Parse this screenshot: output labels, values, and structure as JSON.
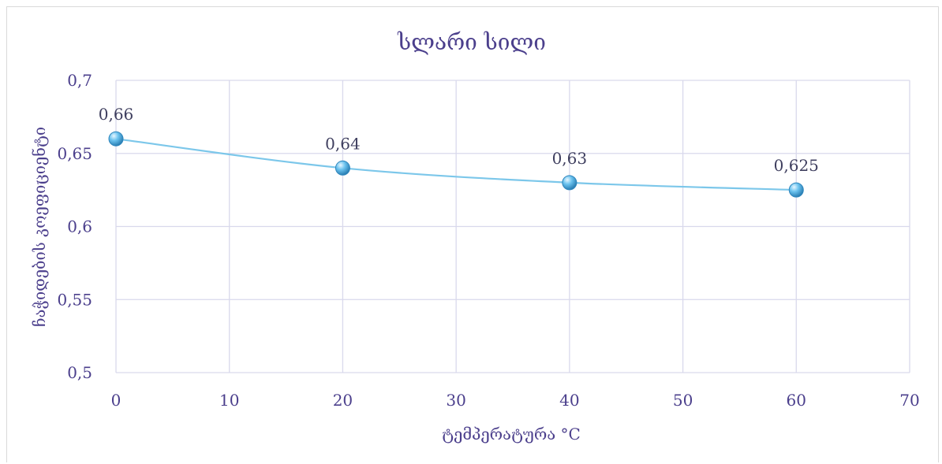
{
  "chart_data": {
    "type": "scatter",
    "title": "სლარი სილი",
    "xlabel": "ტემპერატურა °C",
    "ylabel": "ჩაჭიდების კოეფიციენტი",
    "x_ticks": [
      "0",
      "10",
      "20",
      "30",
      "40",
      "50",
      "60",
      "70"
    ],
    "y_ticks": [
      "0,5",
      "0,55",
      "0,6",
      "0,65",
      "0,7"
    ],
    "xlim": [
      0,
      70
    ],
    "ylim": [
      0.5,
      0.7
    ],
    "grid": true,
    "series": [
      {
        "x": [
          0,
          20,
          40,
          60
        ],
        "y": [
          0.66,
          0.64,
          0.63,
          0.625
        ],
        "labels": [
          "0,66",
          "0,64",
          "0,63",
          "0,625"
        ],
        "line_color": "#7cc7ea",
        "marker_color": "#5bb3e0"
      }
    ],
    "colors": {
      "text": "#4b3f8c",
      "grid": "#d9d9ec"
    }
  }
}
